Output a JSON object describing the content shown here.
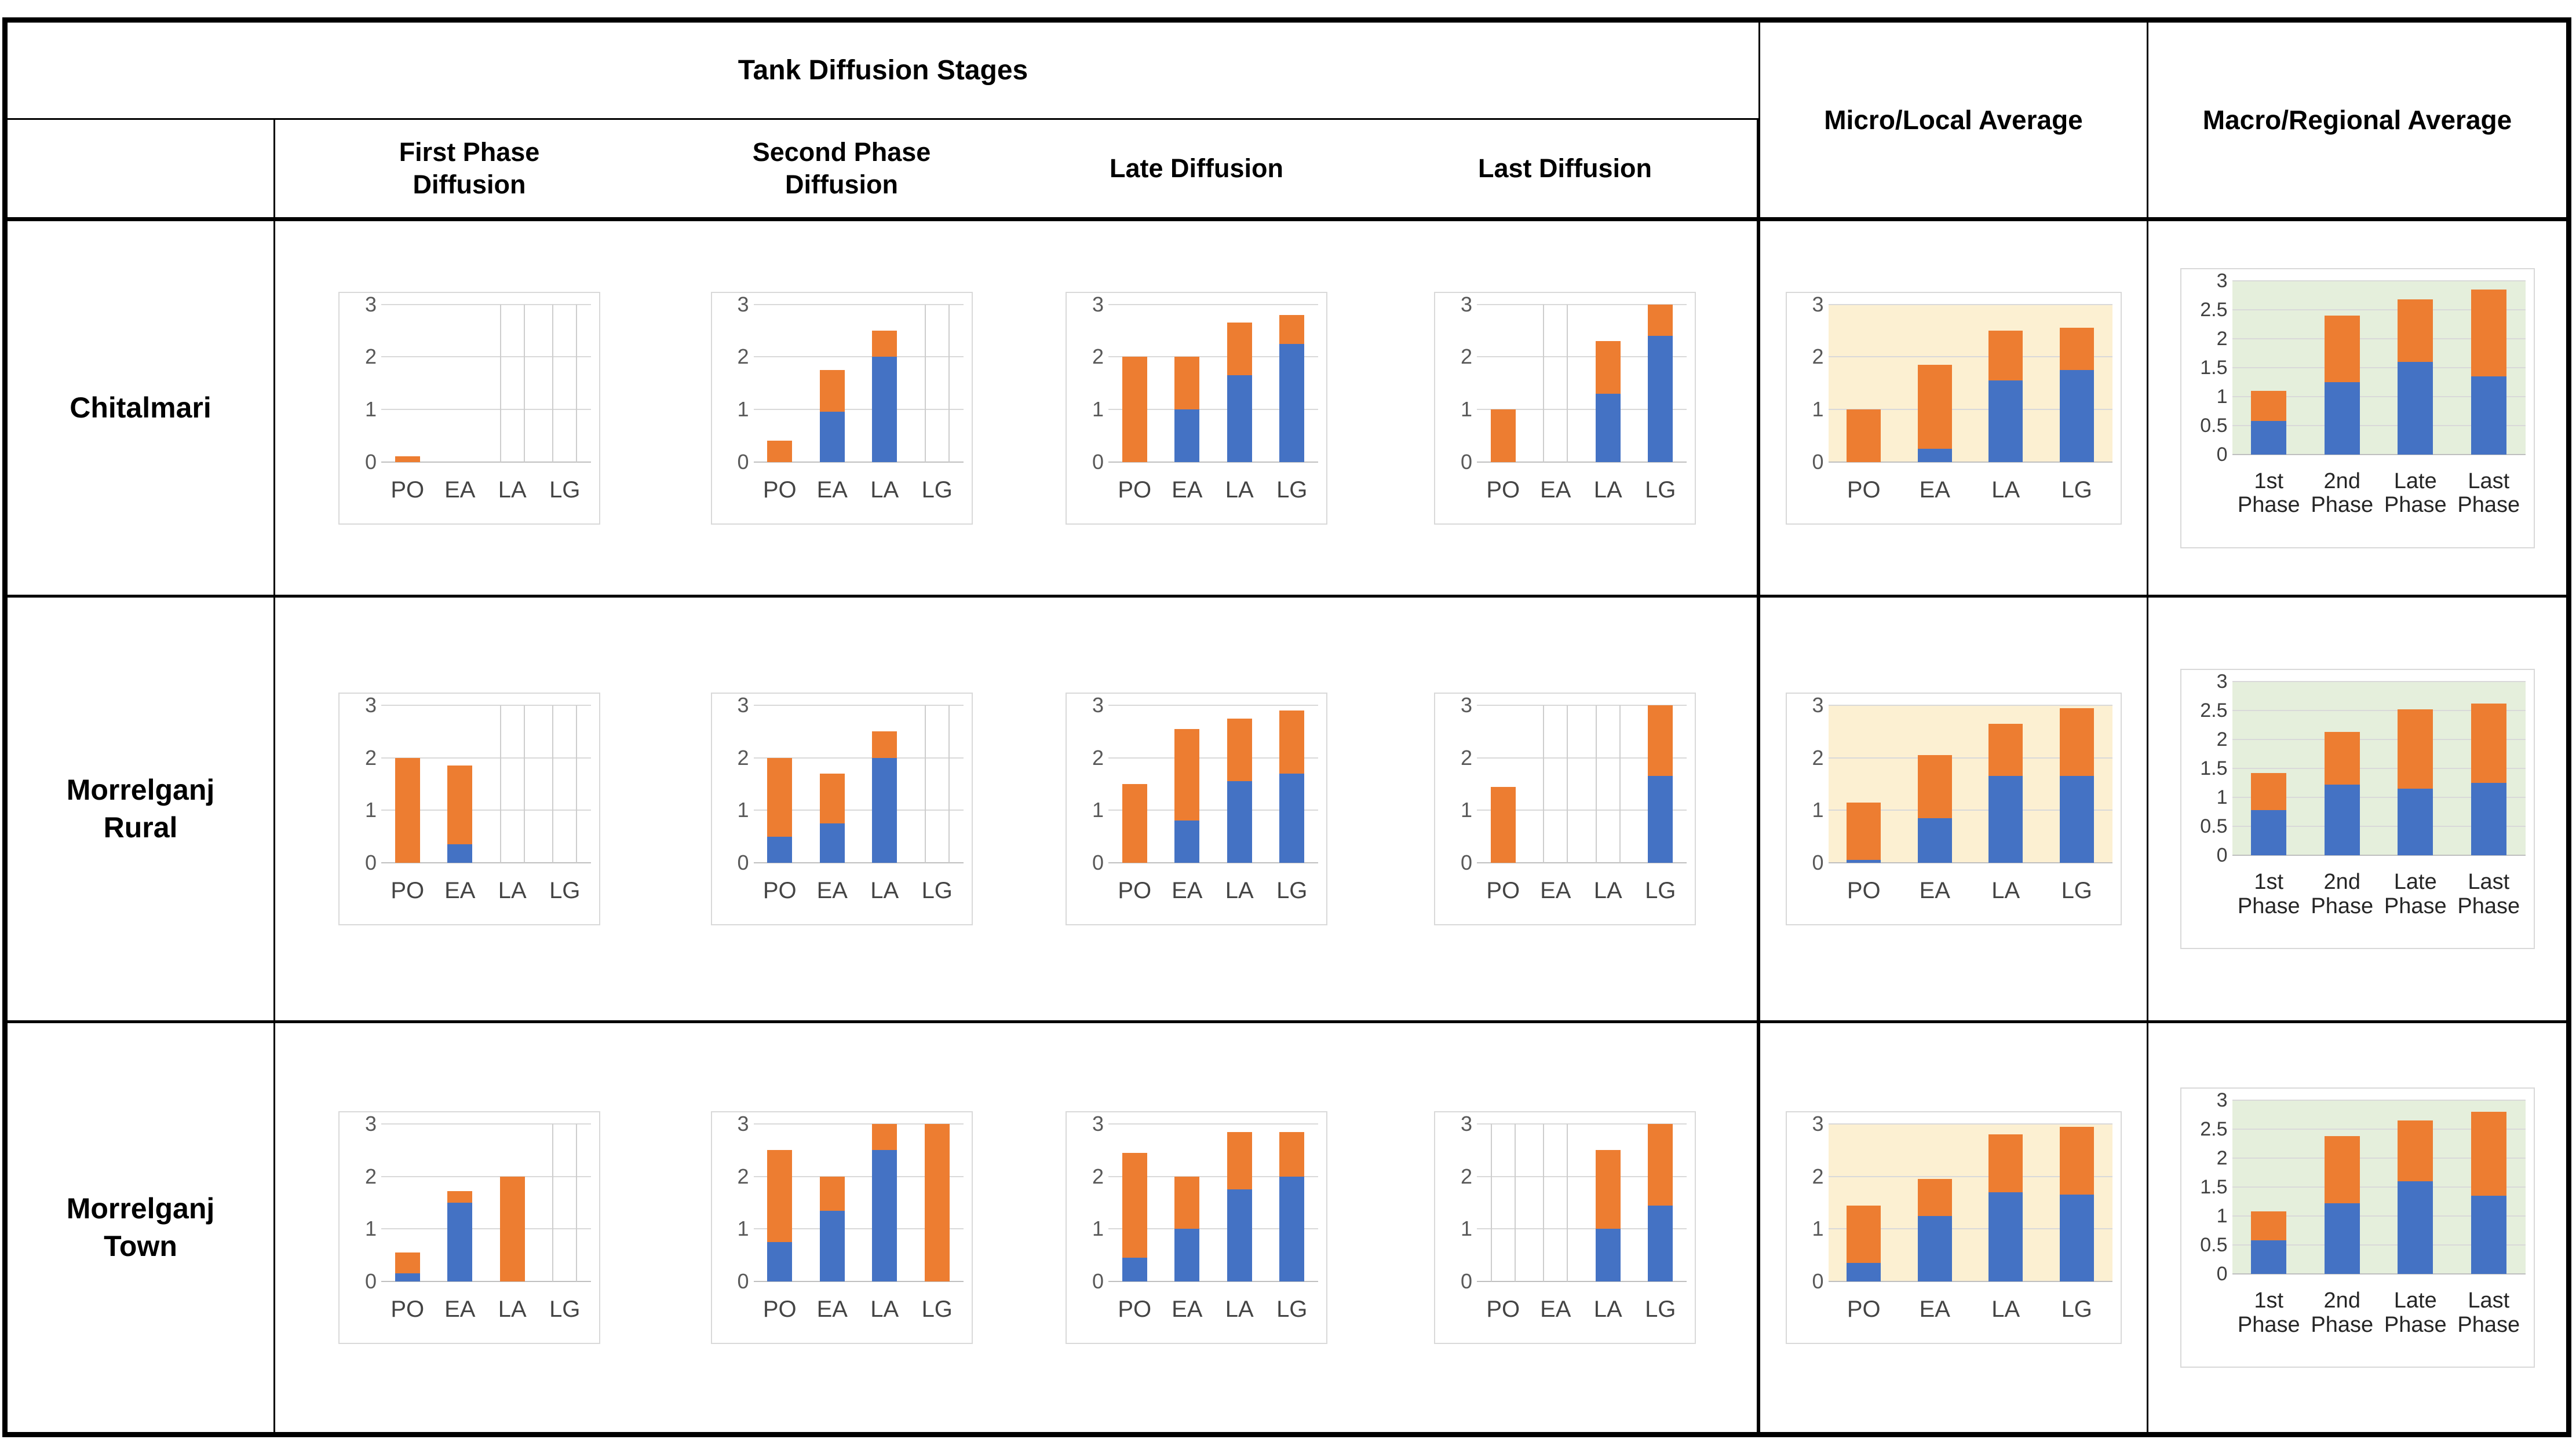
{
  "table": {
    "top_header": "Tank Diffusion Stages",
    "micro_header": "Micro/Local Average",
    "macro_header": "Macro/Regional Average",
    "stage_headers": [
      [
        "First Phase",
        "Diffusion"
      ],
      [
        "Second Phase",
        "Diffusion"
      ],
      [
        "Late Diffusion"
      ],
      [
        "Last Diffusion"
      ]
    ],
    "row_labels": [
      [
        "Chitalmari"
      ],
      [
        "Morrelganj",
        "Rural"
      ],
      [
        "Morrelganj",
        "Town"
      ]
    ]
  },
  "colors": {
    "bar_bottom_blue": "#4472C4",
    "bar_top_orange": "#ED7D31",
    "micro_plot_bg": "#FCF0D2",
    "macro_plot_bg": "#E5EFDC",
    "gridline": "#D9D9D9",
    "axis_line": "#BFBFBF",
    "table_border": "#000000"
  },
  "chart_data": {
    "type": "bar",
    "stacked": true,
    "ylim": [
      0,
      3
    ],
    "stage_yticks": [
      0,
      1,
      2,
      3
    ],
    "macro_yticks": [
      0,
      0.5,
      1,
      1.5,
      2,
      2.5,
      3
    ],
    "stage_categories": [
      "PO",
      "EA",
      "LA",
      "LG"
    ],
    "macro_categories": [
      [
        "1st",
        "Phase"
      ],
      [
        "2nd",
        "Phase"
      ],
      [
        "Late",
        "Phase"
      ],
      [
        "Last",
        "Phase"
      ]
    ],
    "series_names": [
      "blue (bottom)",
      "orange (top)"
    ],
    "legend": "none",
    "grid": true,
    "rows": [
      {
        "label": "Chitalmari",
        "charts": {
          "first": {
            "blue": [
              0,
              0,
              0,
              0
            ],
            "orange": [
              0.1,
              0,
              0,
              0
            ],
            "ghost": [
              false,
              false,
              true,
              true
            ]
          },
          "second": {
            "blue": [
              0,
              0.95,
              2,
              0
            ],
            "orange": [
              0.4,
              0.8,
              0.5,
              0
            ],
            "ghost": [
              false,
              false,
              false,
              true
            ]
          },
          "late": {
            "blue": [
              0,
              1,
              1.65,
              2.25
            ],
            "orange": [
              2,
              1,
              1,
              0.55
            ],
            "ghost": [
              false,
              false,
              false,
              false
            ]
          },
          "last": {
            "blue": [
              0,
              0,
              1.3,
              2.4
            ],
            "orange": [
              1,
              0,
              1,
              0.6
            ],
            "ghost": [
              false,
              true,
              false,
              false
            ]
          },
          "micro": {
            "blue": [
              0,
              0.25,
              1.55,
              1.75
            ],
            "orange": [
              1,
              1.6,
              0.95,
              0.8
            ],
            "ghost": [
              false,
              false,
              false,
              false
            ]
          },
          "macro": {
            "blue": [
              0.58,
              1.25,
              1.6,
              1.35
            ],
            "orange": [
              0.52,
              1.15,
              1.08,
              1.5
            ],
            "ghost": [
              false,
              false,
              false,
              false
            ]
          }
        }
      },
      {
        "label": "Morrelganj Rural",
        "charts": {
          "first": {
            "blue": [
              0,
              0.35,
              0,
              0
            ],
            "orange": [
              2,
              1.5,
              0,
              0
            ],
            "ghost": [
              false,
              false,
              true,
              true
            ]
          },
          "second": {
            "blue": [
              0.5,
              0.75,
              2,
              0
            ],
            "orange": [
              1.5,
              0.95,
              0.5,
              0
            ],
            "ghost": [
              false,
              false,
              false,
              true
            ]
          },
          "late": {
            "blue": [
              0,
              0.8,
              1.55,
              1.7
            ],
            "orange": [
              1.5,
              1.75,
              1.2,
              1.2
            ],
            "ghost": [
              false,
              false,
              false,
              false
            ]
          },
          "last": {
            "blue": [
              0,
              0,
              0,
              1.65
            ],
            "orange": [
              1.45,
              0,
              0,
              1.35
            ],
            "ghost": [
              false,
              true,
              true,
              false
            ]
          },
          "micro": {
            "blue": [
              0.05,
              0.85,
              1.65,
              1.65
            ],
            "orange": [
              1.1,
              1.2,
              1,
              1.3
            ],
            "ghost": [
              false,
              false,
              false,
              false
            ]
          },
          "macro": {
            "blue": [
              0.78,
              1.22,
              1.15,
              1.25
            ],
            "orange": [
              0.64,
              0.91,
              1.37,
              1.37
            ],
            "ghost": [
              false,
              false,
              false,
              false
            ]
          }
        }
      },
      {
        "label": "Morrelganj Town",
        "charts": {
          "first": {
            "blue": [
              0.15,
              1.5,
              0,
              0
            ],
            "orange": [
              0.4,
              0.22,
              2,
              0
            ],
            "ghost": [
              false,
              false,
              false,
              true
            ]
          },
          "second": {
            "blue": [
              0.75,
              1.35,
              2.5,
              0
            ],
            "orange": [
              1.75,
              0.65,
              0.5,
              3
            ],
            "ghost": [
              false,
              false,
              false,
              false
            ]
          },
          "late": {
            "blue": [
              0.45,
              1,
              1.75,
              2
            ],
            "orange": [
              2,
              1,
              1.1,
              0.85
            ],
            "ghost": [
              false,
              false,
              false,
              false
            ]
          },
          "last": {
            "blue": [
              0,
              0,
              1,
              1.45
            ],
            "orange": [
              0,
              0,
              1.5,
              1.55
            ],
            "ghost": [
              true,
              true,
              false,
              false
            ]
          },
          "micro": {
            "blue": [
              0.35,
              1.25,
              1.7,
              1.65
            ],
            "orange": [
              1.1,
              0.7,
              1.1,
              1.3
            ],
            "ghost": [
              false,
              false,
              false,
              false
            ]
          },
          "macro": {
            "blue": [
              0.58,
              1.22,
              1.6,
              1.35
            ],
            "orange": [
              0.5,
              1.16,
              1.05,
              1.45
            ],
            "ghost": [
              false,
              false,
              false,
              false
            ]
          }
        }
      }
    ]
  }
}
